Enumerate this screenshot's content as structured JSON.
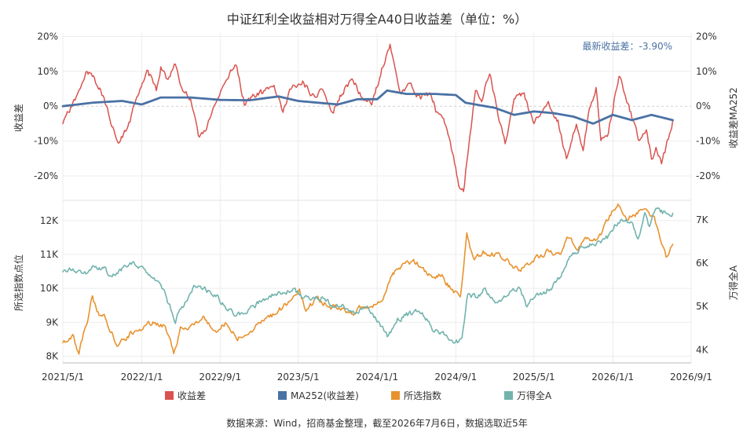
{
  "chart_data": {
    "type": "line",
    "title": "中证红利全收益相对万得全A40日收益差（单位：%）",
    "source": "数据来源：Wind，招商基金整理，截至2026年7月6日，数据选取近5年",
    "x_ticks": [
      "2021/5/1",
      "2022/1/1",
      "2022/9/1",
      "2023/5/1",
      "2024/1/1",
      "2024/9/1",
      "2025/5/1",
      "2026/1/1",
      "2026/9/1"
    ],
    "x_range": [
      "2021/5/1",
      "2026/9/1"
    ],
    "legend": {
      "placement": "bottom",
      "items": [
        {
          "label": "收益差",
          "color": "#d9534f"
        },
        {
          "label": "MA252(收益差)",
          "color": "#4a72a4"
        },
        {
          "label": "所选指数",
          "color": "#e8922e"
        },
        {
          "label": "万得全A",
          "color": "#72b3ad"
        }
      ]
    },
    "top_panel": {
      "left_ylabel": "收益差",
      "right_ylabel": "收益差MA252",
      "ylim": [
        -27,
        21
      ],
      "ticks": [
        20,
        10,
        0,
        -10,
        -20
      ],
      "tick_labels": [
        "20%",
        "10%",
        "0%",
        "-10%",
        "-20%"
      ],
      "annotation": "最新收益差：-3.90%",
      "latest_value": -3.9,
      "grid": true,
      "series": [
        {
          "name": "收益差",
          "color": "#d9534f",
          "points": [
            [
              "2021/5/1",
              -5
            ],
            [
              "2021/6/15",
              3
            ],
            [
              "2021/7/15",
              10
            ],
            [
              "2021/8/20",
              6
            ],
            [
              "2021/9/20",
              -2
            ],
            [
              "2021/10/20",
              -11
            ],
            [
              "2021/11/15",
              -7
            ],
            [
              "2021/12/20",
              3
            ],
            [
              "2022/1/20",
              10
            ],
            [
              "2022/2/15",
              5
            ],
            [
              "2022/3/1",
              11
            ],
            [
              "2022/3/20",
              8
            ],
            [
              "2022/4/15",
              12
            ],
            [
              "2022/5/1",
              6
            ],
            [
              "2022/6/1",
              2
            ],
            [
              "2022/6/25",
              -9
            ],
            [
              "2022/7/20",
              -6
            ],
            [
              "2022/8/20",
              1
            ],
            [
              "2022/9/20",
              8
            ],
            [
              "2022/10/20",
              12
            ],
            [
              "2022/11/15",
              1
            ],
            [
              "2022/12/15",
              3
            ],
            [
              "2023/1/15",
              4
            ],
            [
              "2023/2/15",
              5
            ],
            [
              "2023/3/15",
              -1
            ],
            [
              "2023/4/15",
              6
            ],
            [
              "2023/5/15",
              7
            ],
            [
              "2023/6/15",
              3
            ],
            [
              "2023/7/15",
              5
            ],
            [
              "2023/8/15",
              -2
            ],
            [
              "2023/9/15",
              4
            ],
            [
              "2023/10/15",
              8
            ],
            [
              "2023/11/15",
              3
            ],
            [
              "2023/12/15",
              1
            ],
            [
              "2024/1/5",
              7
            ],
            [
              "2024/2/1",
              16
            ],
            [
              "2024/2/10",
              18
            ],
            [
              "2024/2/25",
              10
            ],
            [
              "2024/3/15",
              4
            ],
            [
              "2024/4/15",
              6
            ],
            [
              "2024/5/15",
              2
            ],
            [
              "2024/6/15",
              4
            ],
            [
              "2024/7/1",
              -1
            ],
            [
              "2024/7/25",
              -4
            ],
            [
              "2024/8/15",
              -10
            ],
            [
              "2024/8/25",
              -15
            ],
            [
              "2024/9/10",
              -22
            ],
            [
              "2024/9/25",
              -24
            ],
            [
              "2024/10/15",
              -8
            ],
            [
              "2024/11/1",
              5
            ],
            [
              "2024/11/20",
              2
            ],
            [
              "2024/12/15",
              9
            ],
            [
              "2025/1/10",
              -2
            ],
            [
              "2025/2/1",
              -10
            ],
            [
              "2025/3/1",
              2
            ],
            [
              "2025/4/1",
              3
            ],
            [
              "2025/5/1",
              -5
            ],
            [
              "2025/5/20",
              -3
            ],
            [
              "2025/6/15",
              0
            ],
            [
              "2025/7/15",
              -4
            ],
            [
              "2025/8/10",
              -15
            ],
            [
              "2025/9/10",
              -5
            ],
            [
              "2025/10/1",
              -13
            ],
            [
              "2025/10/20",
              0
            ],
            [
              "2025/11/10",
              5
            ],
            [
              "2025/11/25",
              -10
            ],
            [
              "2025/12/15",
              -9
            ],
            [
              "2026/1/5",
              2
            ],
            [
              "2026/1/20",
              9
            ],
            [
              "2026/2/10",
              3
            ],
            [
              "2026/3/1",
              -3
            ],
            [
              "2026/3/25",
              -10
            ],
            [
              "2026/4/15",
              -6
            ],
            [
              "2026/5/1",
              -15
            ],
            [
              "2026/5/15",
              -12
            ],
            [
              "2026/6/1",
              -16
            ],
            [
              "2026/6/15",
              -12
            ],
            [
              "2026/7/6",
              -3.9
            ]
          ]
        },
        {
          "name": "MA252(收益差)",
          "color": "#4a72a4",
          "points": [
            [
              "2021/5/1",
              0
            ],
            [
              "2021/8/1",
              1
            ],
            [
              "2021/11/1",
              1.5
            ],
            [
              "2022/1/1",
              0.5
            ],
            [
              "2022/3/1",
              2.5
            ],
            [
              "2022/6/1",
              2.5
            ],
            [
              "2022/9/1",
              1.8
            ],
            [
              "2022/12/1",
              1.7
            ],
            [
              "2023/3/1",
              2.8
            ],
            [
              "2023/5/1",
              1.5
            ],
            [
              "2023/7/1",
              1
            ],
            [
              "2023/9/1",
              0.5
            ],
            [
              "2023/11/1",
              2
            ],
            [
              "2024/1/1",
              2
            ],
            [
              "2024/2/1",
              4.5
            ],
            [
              "2024/4/1",
              3.5
            ],
            [
              "2024/7/1",
              3.5
            ],
            [
              "2024/9/1",
              3.2
            ],
            [
              "2024/10/1",
              1
            ],
            [
              "2024/11/1",
              0.5
            ],
            [
              "2025/1/1",
              -0.5
            ],
            [
              "2025/3/1",
              -2.5
            ],
            [
              "2025/5/1",
              -1.5
            ],
            [
              "2025/7/1",
              -2
            ],
            [
              "2025/9/1",
              -3
            ],
            [
              "2025/11/1",
              -5
            ],
            [
              "2026/1/1",
              -2.5
            ],
            [
              "2026/3/1",
              -4
            ],
            [
              "2026/5/1",
              -2.5
            ],
            [
              "2026/7/6",
              -4
            ]
          ]
        }
      ]
    },
    "bottom_panel": {
      "left_ylabel": "所选指数点位",
      "right_ylabel": "万得全A",
      "left_ylim": [
        7800,
        12600
      ],
      "left_ticks": [
        12000,
        11000,
        10000,
        9000,
        8000
      ],
      "left_tick_labels": [
        "12K",
        "11K",
        "10K",
        "9K",
        "8K"
      ],
      "right_ylim": [
        3700,
        7450
      ],
      "right_ticks": [
        7000,
        6000,
        5000,
        4000
      ],
      "right_tick_labels": [
        "7K",
        "6K",
        "5K",
        "4K"
      ],
      "grid": true,
      "series": [
        {
          "name": "所选指数",
          "color": "#e8922e",
          "axis": "left",
          "points": [
            [
              "2021/5/1",
              8400
            ],
            [
              "2021/6/1",
              8600
            ],
            [
              "2021/6/20",
              8100
            ],
            [
              "2021/7/20",
              9200
            ],
            [
              "2021/8/1",
              9800
            ],
            [
              "2021/8/15",
              9300
            ],
            [
              "2021/9/10",
              9100
            ],
            [
              "2021/10/20",
              8300
            ],
            [
              "2021/12/1",
              8700
            ],
            [
              "2022/1/1",
              8800
            ],
            [
              "2022/2/1",
              9000
            ],
            [
              "2022/3/15",
              8900
            ],
            [
              "2022/4/10",
              8100
            ],
            [
              "2022/5/1",
              8800
            ],
            [
              "2022/6/1",
              8800
            ],
            [
              "2022/7/10",
              9100
            ],
            [
              "2022/8/20",
              8800
            ],
            [
              "2022/9/20",
              9000
            ],
            [
              "2022/10/25",
              8500
            ],
            [
              "2022/12/1",
              8700
            ],
            [
              "2023/1/1",
              9000
            ],
            [
              "2023/2/15",
              9200
            ],
            [
              "2023/4/1",
              9600
            ],
            [
              "2023/5/5",
              9900
            ],
            [
              "2023/5/25",
              9400
            ],
            [
              "2023/7/1",
              9700
            ],
            [
              "2023/8/1",
              9500
            ],
            [
              "2023/9/10",
              9400
            ],
            [
              "2023/10/20",
              9300
            ],
            [
              "2023/12/1",
              9500
            ],
            [
              "2024/1/1",
              9500
            ],
            [
              "2024/1/20",
              9600
            ],
            [
              "2024/2/15",
              10400
            ],
            [
              "2024/3/15",
              10600
            ],
            [
              "2024/4/20",
              10800
            ],
            [
              "2024/5/20",
              10600
            ],
            [
              "2024/6/20",
              10300
            ],
            [
              "2024/7/20",
              10400
            ],
            [
              "2024/8/15",
              10000
            ],
            [
              "2024/9/15",
              9800
            ],
            [
              "2024/9/25",
              10500
            ],
            [
              "2024/10/5",
              11600
            ],
            [
              "2024/10/25",
              10800
            ],
            [
              "2024/11/25",
              11100
            ],
            [
              "2025/1/1",
              11000
            ],
            [
              "2025/2/1",
              10900
            ],
            [
              "2025/3/15",
              10500
            ],
            [
              "2025/4/10",
              10700
            ],
            [
              "2025/5/10",
              10900
            ],
            [
              "2025/6/15",
              11100
            ],
            [
              "2025/7/20",
              11000
            ],
            [
              "2025/8/15",
              11500
            ],
            [
              "2025/9/15",
              11200
            ],
            [
              "2025/10/15",
              11500
            ],
            [
              "2025/11/15",
              11400
            ],
            [
              "2026/1/1",
              12300
            ],
            [
              "2026/1/20",
              12500
            ],
            [
              "2026/2/15",
              12100
            ],
            [
              "2026/3/15",
              12200
            ],
            [
              "2026/4/15",
              12400
            ],
            [
              "2026/5/10",
              12000
            ],
            [
              "2026/5/25",
              11500
            ],
            [
              "2026/6/15",
              10900
            ],
            [
              "2026/7/6",
              11300
            ]
          ]
        },
        {
          "name": "万得全A",
          "color": "#72b3ad",
          "axis": "right",
          "points": [
            [
              "2021/5/1",
              5800
            ],
            [
              "2021/6/1",
              5900
            ],
            [
              "2021/7/1",
              5700
            ],
            [
              "2021/8/1",
              5900
            ],
            [
              "2021/9/1",
              5900
            ],
            [
              "2021/10/1",
              5700
            ],
            [
              "2021/11/15",
              5900
            ],
            [
              "2021/12/10",
              6000
            ],
            [
              "2022/1/1",
              5900
            ],
            [
              "2022/2/1",
              5600
            ],
            [
              "2022/3/1",
              5500
            ],
            [
              "2022/4/15",
              4700
            ],
            [
              "2022/5/15",
              5100
            ],
            [
              "2022/6/15",
              5500
            ],
            [
              "2022/7/15",
              5400
            ],
            [
              "2022/8/15",
              5300
            ],
            [
              "2022/9/15",
              5000
            ],
            [
              "2022/10/25",
              4800
            ],
            [
              "2022/12/15",
              5000
            ],
            [
              "2023/1/20",
              5200
            ],
            [
              "2023/3/1",
              5300
            ],
            [
              "2023/4/15",
              5400
            ],
            [
              "2023/5/15",
              5200
            ],
            [
              "2023/6/15",
              5200
            ],
            [
              "2023/7/15",
              5200
            ],
            [
              "2023/8/15",
              5000
            ],
            [
              "2023/9/15",
              5000
            ],
            [
              "2023/10/25",
              4900
            ],
            [
              "2023/11/25",
              5000
            ],
            [
              "2024/1/1",
              4700
            ],
            [
              "2024/2/5",
              4300
            ],
            [
              "2024/3/1",
              4700
            ],
            [
              "2024/4/1",
              4800
            ],
            [
              "2024/5/20",
              4900
            ],
            [
              "2024/6/20",
              4500
            ],
            [
              "2024/7/20",
              4400
            ],
            [
              "2024/8/20",
              4200
            ],
            [
              "2024/9/20",
              4200
            ],
            [
              "2024/10/8",
              5300
            ],
            [
              "2024/11/1",
              5200
            ],
            [
              "2024/12/1",
              5400
            ],
            [
              "2025/1/1",
              5100
            ],
            [
              "2025/2/15",
              5300
            ],
            [
              "2025/3/15",
              5400
            ],
            [
              "2025/4/10",
              5000
            ],
            [
              "2025/5/1",
              5200
            ],
            [
              "2025/6/1",
              5300
            ],
            [
              "2025/7/15",
              5600
            ],
            [
              "2025/8/20",
              6100
            ],
            [
              "2025/9/15",
              6300
            ],
            [
              "2025/10/15",
              6400
            ],
            [
              "2025/11/15",
              6500
            ],
            [
              "2025/12/15",
              6600
            ],
            [
              "2026/1/10",
              6900
            ],
            [
              "2026/2/1",
              7000
            ],
            [
              "2026/3/1",
              6900
            ],
            [
              "2026/3/20",
              6600
            ],
            [
              "2026/4/10",
              7100
            ],
            [
              "2026/4/25",
              6800
            ],
            [
              "2026/5/15",
              7300
            ],
            [
              "2026/6/1",
              7200
            ],
            [
              "2026/6/20",
              7100
            ],
            [
              "2026/7/6",
              7150
            ]
          ]
        }
      ]
    }
  }
}
